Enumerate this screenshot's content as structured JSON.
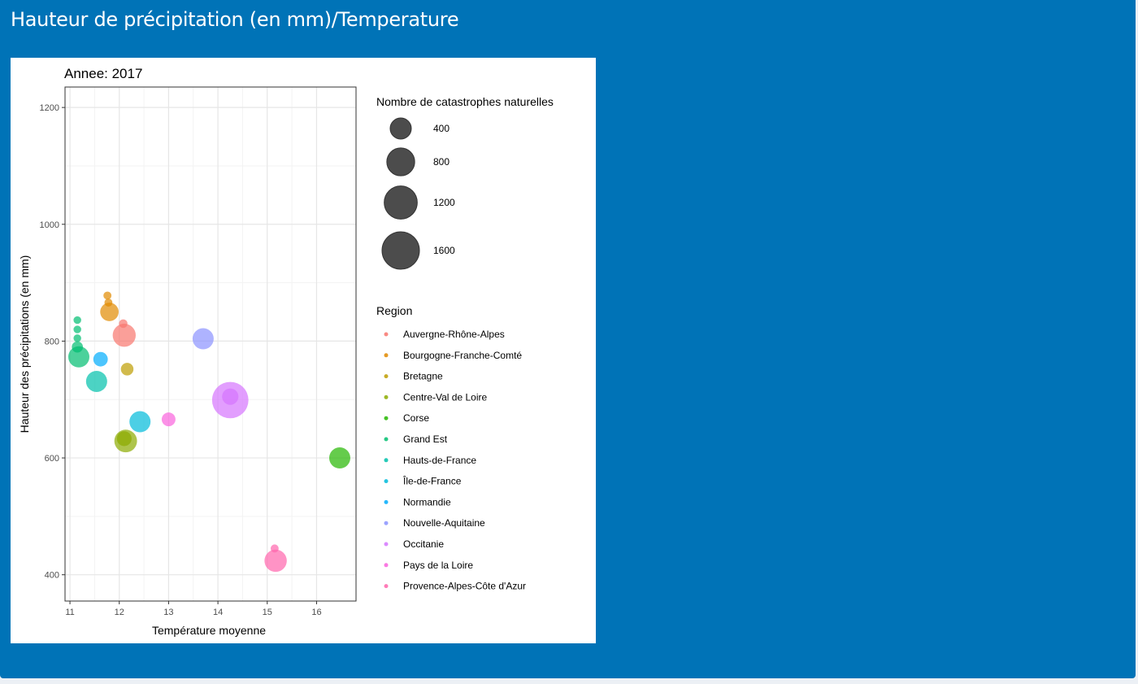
{
  "panel": {
    "title": "Hauteur de précipitation (en mm)/Temperature"
  },
  "chart_data": {
    "type": "scatter",
    "title": "Annee: 2017",
    "xlabel": "Température moyenne",
    "ylabel": "Hauteur des précipitations (en mm)",
    "xlim": [
      10.9,
      16.8
    ],
    "ylim": [
      355,
      1235
    ],
    "xticks": [
      11,
      12,
      13,
      14,
      15,
      16
    ],
    "yticks": [
      400,
      600,
      800,
      1000,
      1200
    ],
    "grid": true,
    "size_legend": {
      "title": "Nombre de catastrophes naturelles",
      "values": [
        400,
        800,
        1200,
        1600
      ]
    },
    "legend_title": "Region",
    "legend_placement": "right",
    "series": [
      {
        "name": "Auvergne-Rhône-Alpes",
        "color": "#F8766D",
        "points": [
          {
            "x": 12.1,
            "y": 810,
            "size": 500
          },
          {
            "x": 12.08,
            "y": 830,
            "size": 20
          }
        ]
      },
      {
        "name": "Bourgogne-Franche-Comté",
        "color": "#E18A00",
        "points": [
          {
            "x": 11.8,
            "y": 850,
            "size": 280
          },
          {
            "x": 11.76,
            "y": 878,
            "size": 15
          },
          {
            "x": 11.78,
            "y": 866,
            "size": 15
          }
        ]
      },
      {
        "name": "Bretagne",
        "color": "#BE9C00",
        "points": [
          {
            "x": 12.16,
            "y": 752,
            "size": 90
          }
        ]
      },
      {
        "name": "Centre-Val de Loire",
        "color": "#8CAB00",
        "points": [
          {
            "x": 12.13,
            "y": 629,
            "size": 480
          },
          {
            "x": 12.1,
            "y": 633,
            "size": 150
          }
        ]
      },
      {
        "name": "Corse",
        "color": "#24B700",
        "points": [
          {
            "x": 16.47,
            "y": 600,
            "size": 400
          }
        ]
      },
      {
        "name": "Grand Est",
        "color": "#00BE70",
        "points": [
          {
            "x": 11.18,
            "y": 773,
            "size": 400
          },
          {
            "x": 11.15,
            "y": 790,
            "size": 60
          },
          {
            "x": 11.15,
            "y": 805,
            "size": 12
          },
          {
            "x": 11.15,
            "y": 820,
            "size": 12
          },
          {
            "x": 11.15,
            "y": 836,
            "size": 12
          }
        ]
      },
      {
        "name": "Hauts-de-France",
        "color": "#00C1AB",
        "points": [
          {
            "x": 11.54,
            "y": 731,
            "size": 400
          }
        ]
      },
      {
        "name": "Île-de-France",
        "color": "#00BBDA",
        "points": [
          {
            "x": 12.42,
            "y": 662,
            "size": 400
          }
        ]
      },
      {
        "name": "Normandie",
        "color": "#00ACFC",
        "points": [
          {
            "x": 11.62,
            "y": 769,
            "size": 140
          }
        ]
      },
      {
        "name": "Nouvelle-Aquitaine",
        "color": "#8B93FF",
        "points": [
          {
            "x": 13.7,
            "y": 804,
            "size": 400
          }
        ]
      },
      {
        "name": "Occitanie",
        "color": "#D575FE",
        "points": [
          {
            "x": 14.25,
            "y": 699,
            "size": 1500
          },
          {
            "x": 14.25,
            "y": 705,
            "size": 200
          }
        ]
      },
      {
        "name": "Pays de la Loire",
        "color": "#F962DD",
        "points": [
          {
            "x": 13.0,
            "y": 666,
            "size": 120
          }
        ]
      },
      {
        "name": "Provence-Alpes-Côte d'Azur",
        "color": "#FF65AC",
        "points": [
          {
            "x": 15.17,
            "y": 424,
            "size": 460
          },
          {
            "x": 15.15,
            "y": 445,
            "size": 15
          }
        ]
      }
    ]
  }
}
